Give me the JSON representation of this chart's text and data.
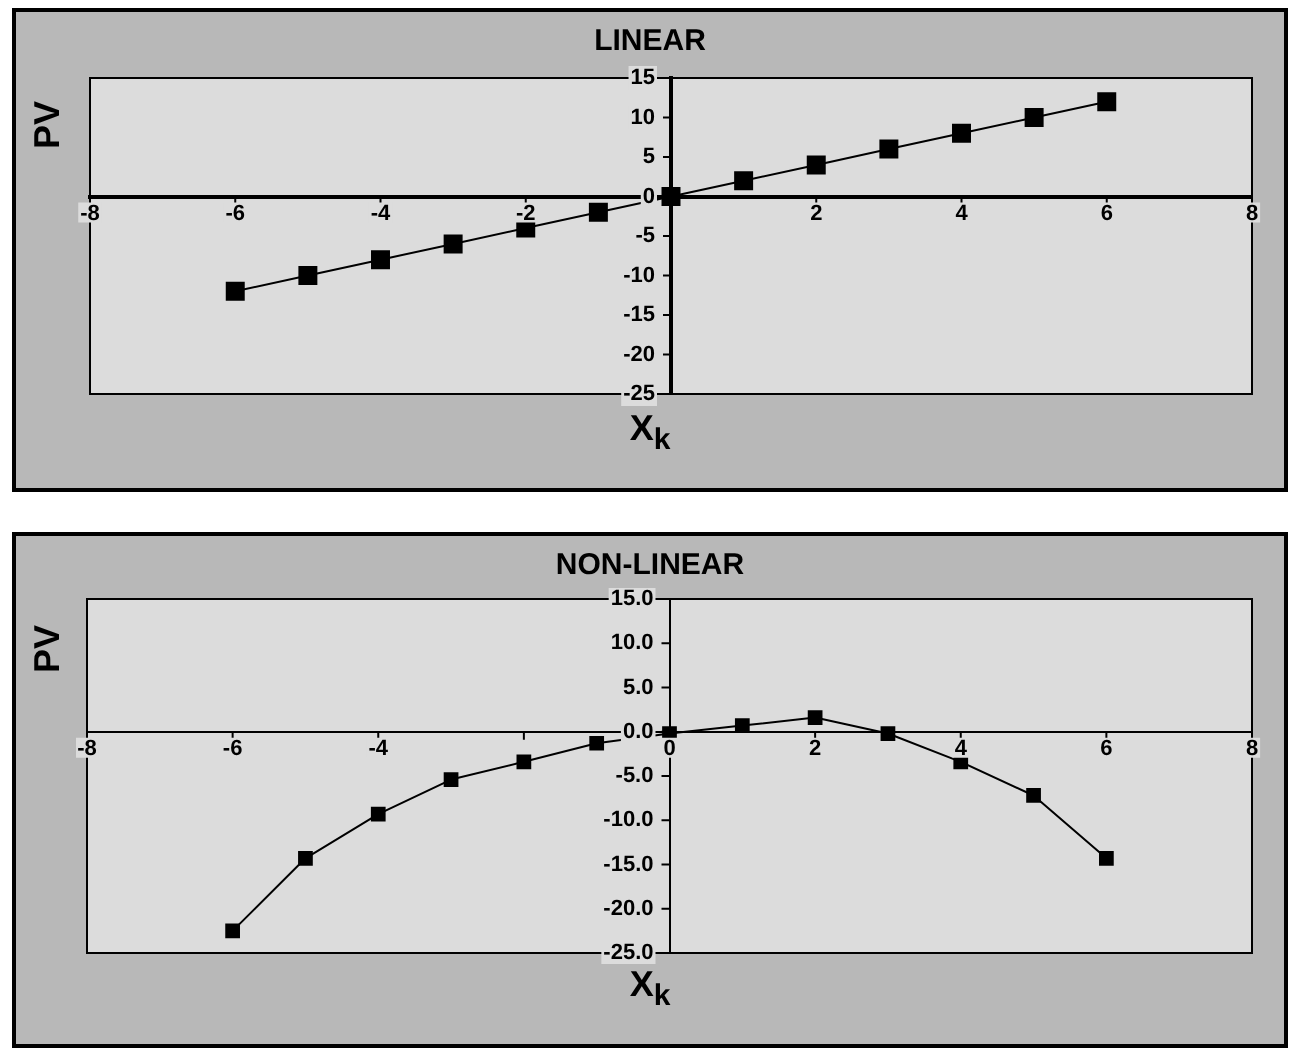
{
  "chart_data": [
    {
      "type": "line",
      "title": "LINEAR",
      "xlabel": "X$_{k}$",
      "ylabel": "PV",
      "x": [
        -6,
        -5,
        -4,
        -3,
        -2,
        -1,
        0,
        1,
        2,
        3,
        4,
        5,
        6
      ],
      "series": [
        {
          "color": "#000000",
          "values": [
            -12,
            -10,
            -8,
            -6,
            -4,
            -2,
            0,
            2,
            4,
            6,
            8,
            10,
            12
          ]
        }
      ],
      "xlim": [
        -8,
        8
      ],
      "xticks": [
        -8,
        -6,
        -4,
        -2,
        {
          "value": 0,
          "label": null
        },
        2,
        4,
        6,
        8
      ],
      "ylim": [
        -25,
        15
      ],
      "yticks": [
        -25,
        -20,
        -15,
        -10,
        -5,
        0,
        5,
        10,
        15
      ],
      "marker": "square",
      "line_style": "solid"
    },
    {
      "type": "line",
      "title": "NON-LINEAR",
      "xlabel": "X$_{k}$",
      "ylabel": "PV",
      "x": [
        -6,
        -5,
        -4,
        -3,
        -2,
        -1,
        0,
        1,
        2,
        3,
        4,
        5,
        6
      ],
      "series": [
        {
          "color": "#000000",
          "values": [
            -22.5,
            -14.3,
            -9.3,
            -5.4,
            -3.4,
            -1.3,
            -0.2,
            0.7,
            1.6,
            -0.2,
            -3.4,
            -7.2,
            -14.3
          ]
        }
      ],
      "xlim": [
        -8,
        8
      ],
      "xticks": [
        -8,
        -6,
        -4,
        {
          "value": -2,
          "label": null
        },
        0,
        2,
        4,
        6,
        8
      ],
      "ylim": [
        -25,
        15
      ],
      "yticks": [
        {
          "value": -25,
          "label": "-25.0"
        },
        {
          "value": -20,
          "label": "-20.0"
        },
        {
          "value": -15,
          "label": "-15.0"
        },
        {
          "value": -10,
          "label": "-10.0"
        },
        {
          "value": -5,
          "label": "-5.0"
        },
        {
          "value": 0,
          "label": "0.0"
        },
        {
          "value": 5,
          "label": "5.0"
        },
        {
          "value": 10,
          "label": "10.0"
        },
        {
          "value": 15,
          "label": "15.0"
        }
      ],
      "marker": "square",
      "line_style": "solid"
    }
  ]
}
